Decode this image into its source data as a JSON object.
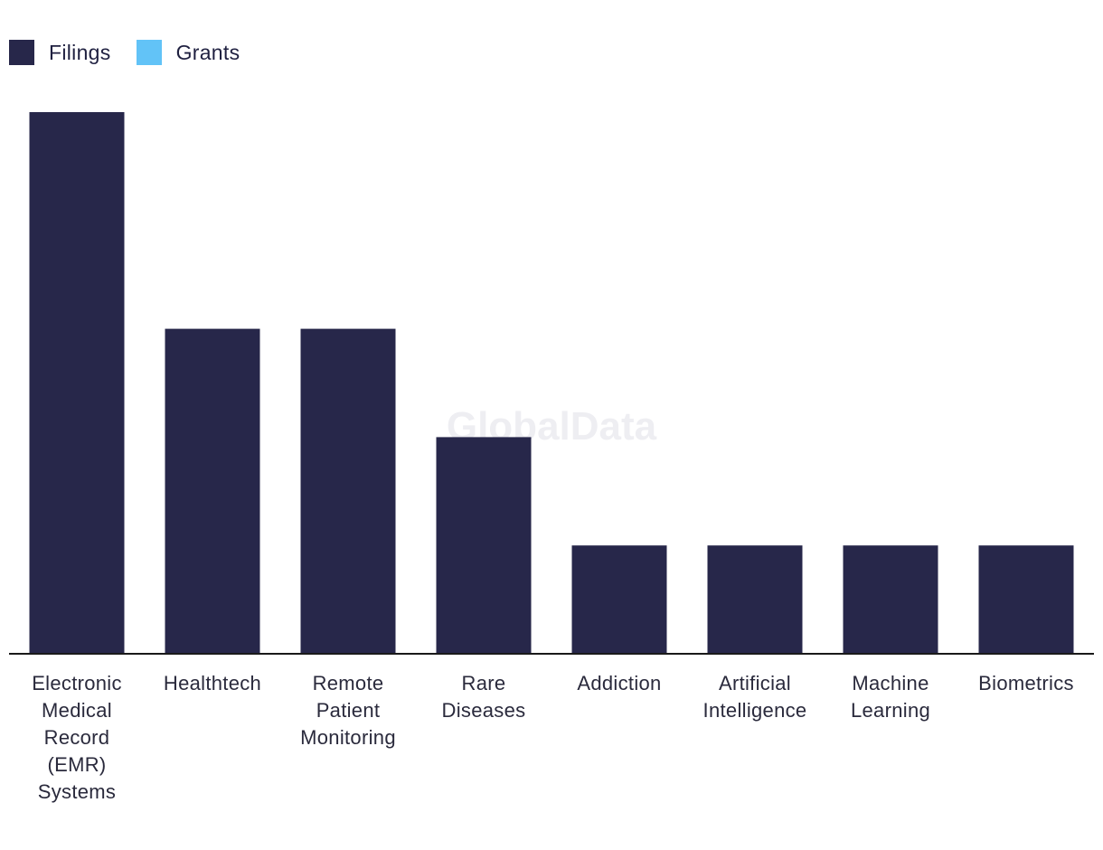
{
  "legend": {
    "items": [
      {
        "label": "Filings",
        "color": "#27274a"
      },
      {
        "label": "Grants",
        "color": "#62c3f7"
      }
    ]
  },
  "watermark": "GlobalData",
  "chart_data": {
    "type": "bar",
    "categories": [
      "Electronic Medical Record (EMR) Systems",
      "Healthtech",
      "Remote Patient Monitoring",
      "Rare Diseases",
      "Addiction",
      "Artificial Intelligence",
      "Machine Learning",
      "Biometrics"
    ],
    "category_lines": [
      [
        "Electronic",
        "Medical",
        "Record",
        "(EMR)",
        "Systems"
      ],
      [
        "Healthtech"
      ],
      [
        "Remote",
        "Patient",
        "Monitoring"
      ],
      [
        "Rare",
        "Diseases"
      ],
      [
        "Addiction"
      ],
      [
        "Artificial",
        "Intelligence"
      ],
      [
        "Machine",
        "Learning"
      ],
      [
        "Biometrics"
      ]
    ],
    "series": [
      {
        "name": "Filings",
        "color": "#27274a",
        "values": [
          5,
          3,
          3,
          2,
          1,
          1,
          1,
          1
        ]
      },
      {
        "name": "Grants",
        "color": "#62c3f7",
        "values": [
          0,
          0,
          0,
          0,
          0,
          0,
          0,
          0
        ]
      }
    ],
    "title": "",
    "xlabel": "",
    "ylabel": "",
    "ylim": [
      0,
      5
    ],
    "grid": false,
    "legend_position": "top-left"
  }
}
